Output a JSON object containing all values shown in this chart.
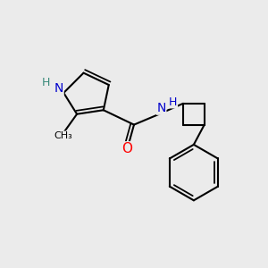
{
  "bg_color": "#ebebeb",
  "bond_color": "#000000",
  "bond_width": 1.5,
  "atom_colors": {
    "O": "#ff0000",
    "N": "#0000cc",
    "H_pyrrole": "#3a8a7a",
    "C": "#000000"
  },
  "fig_width": 3.0,
  "fig_height": 3.0,
  "dpi": 100,
  "xlim": [
    0,
    10
  ],
  "ylim": [
    0,
    10
  ]
}
